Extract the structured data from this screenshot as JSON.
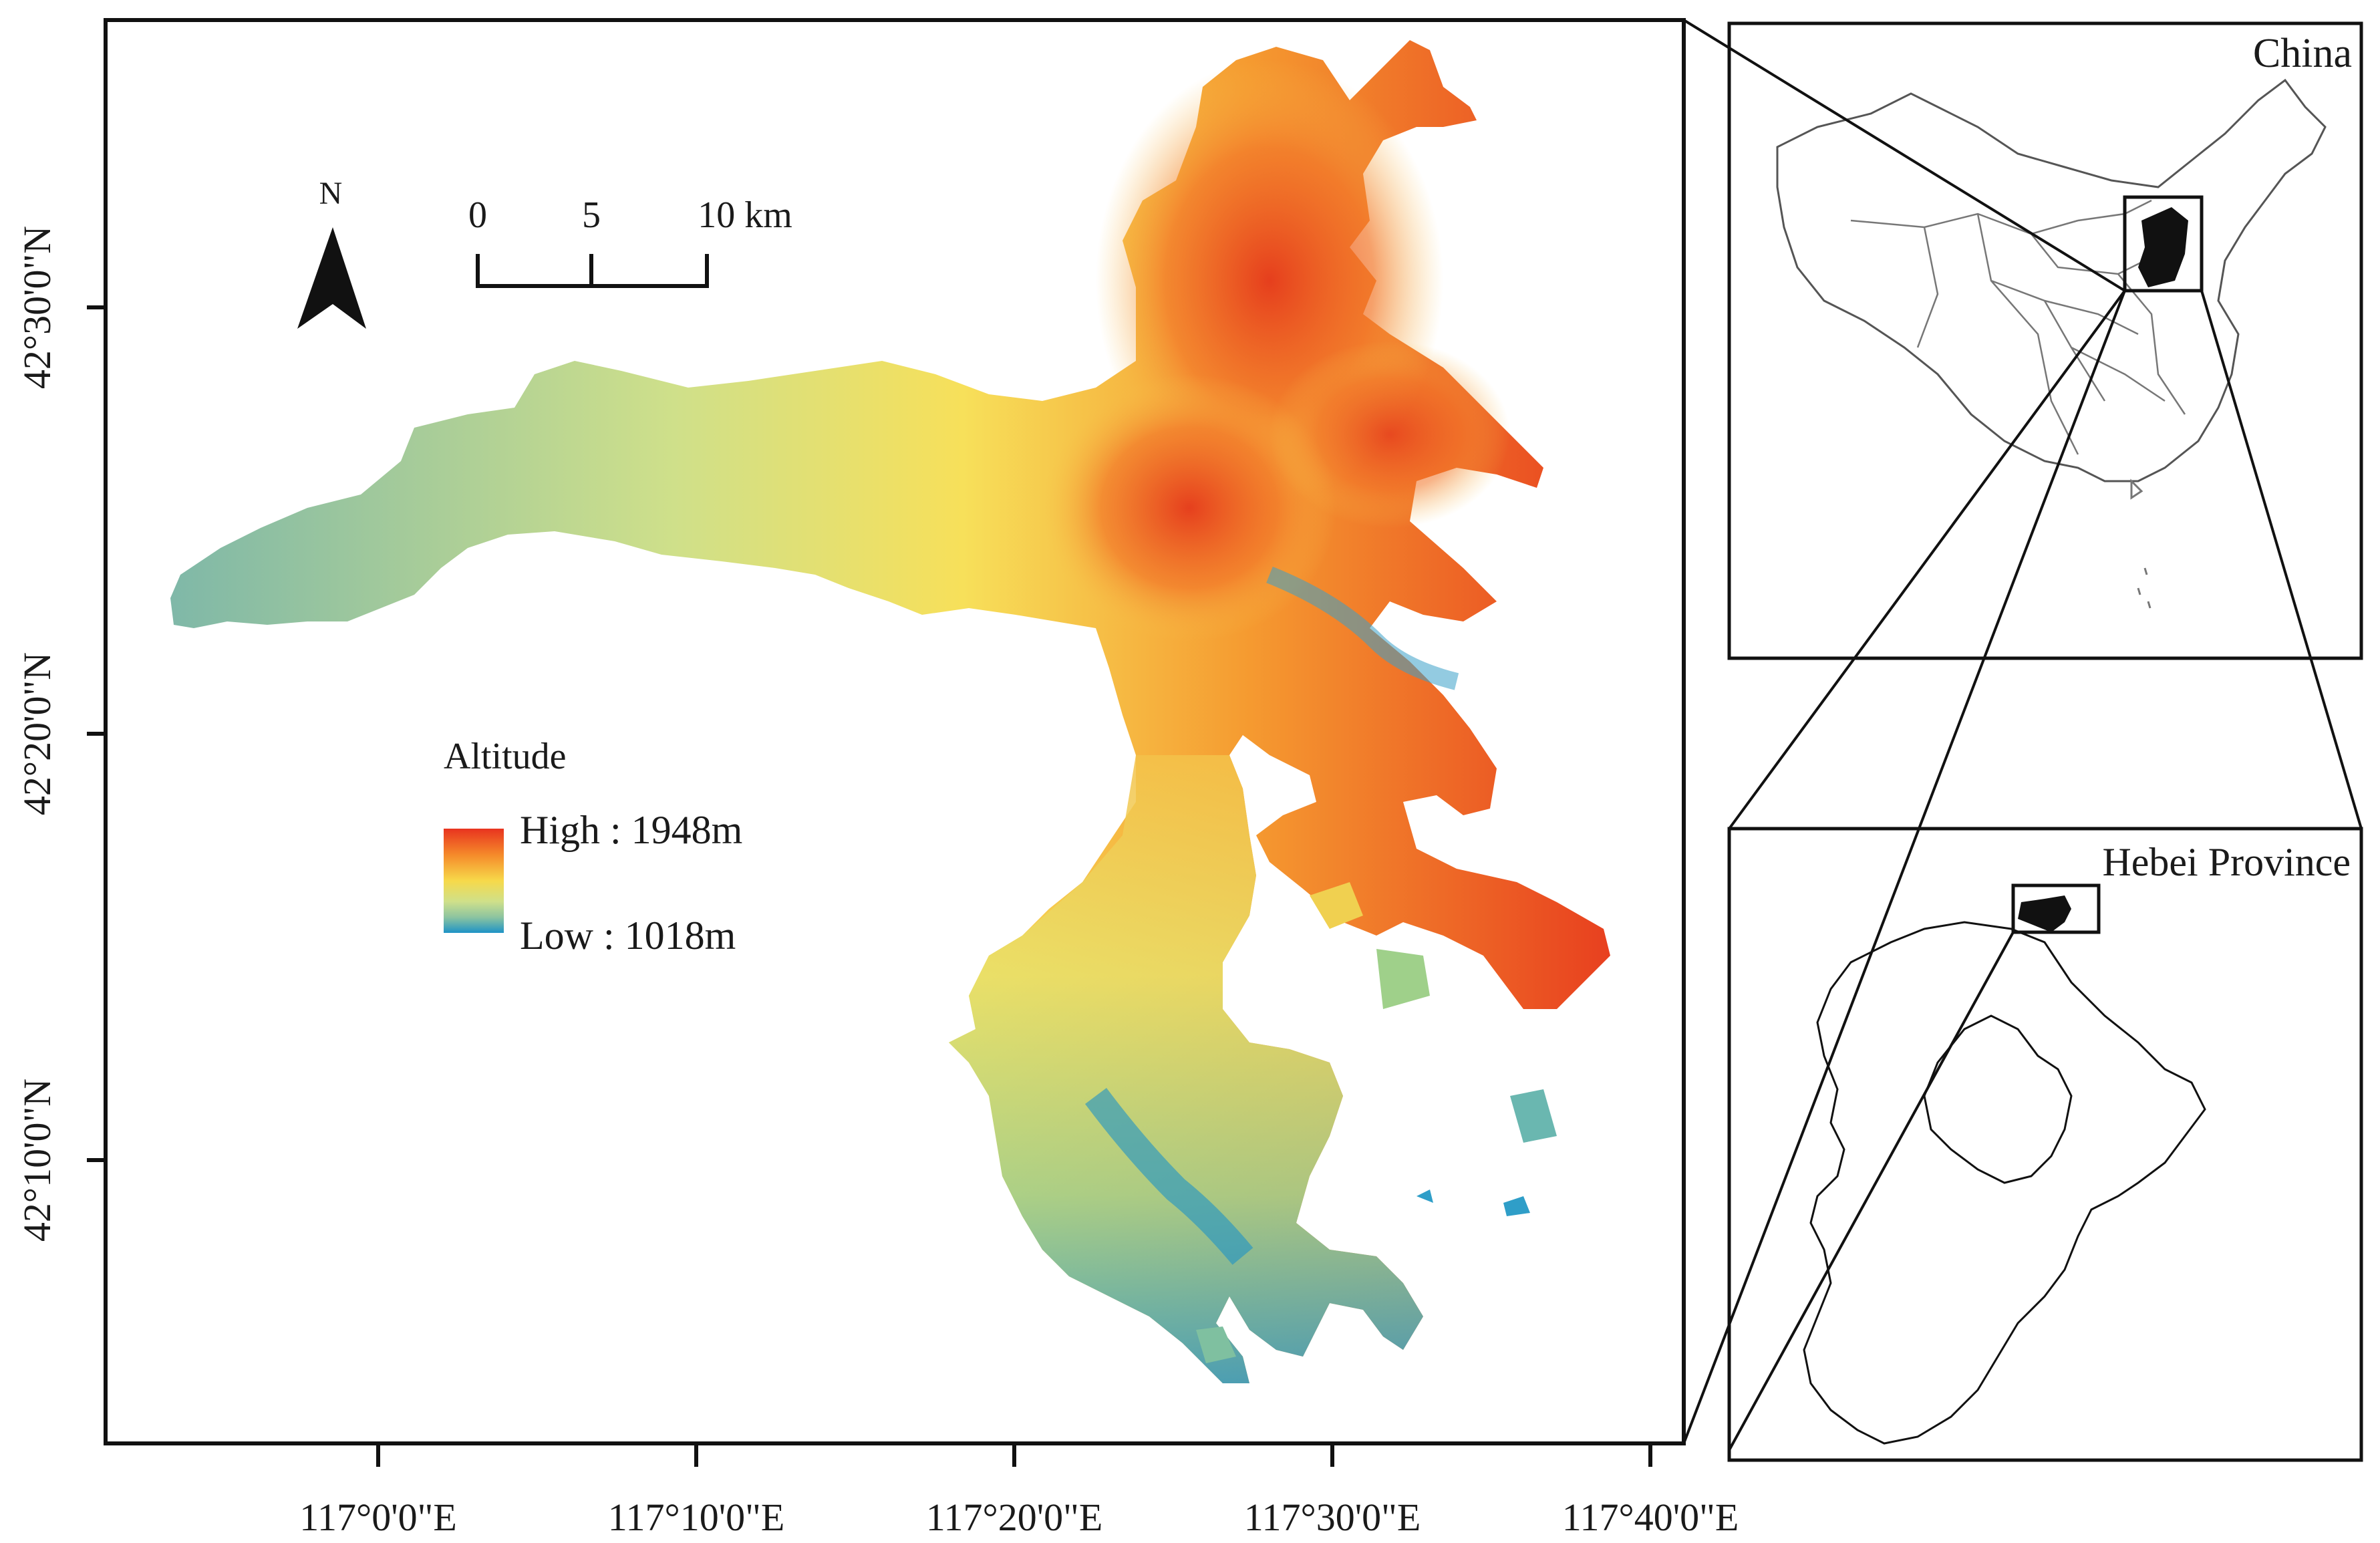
{
  "main_map": {
    "north_arrow_label": "N",
    "scale_bar": {
      "labels": [
        "0",
        "5",
        "10 km"
      ]
    },
    "legend": {
      "title": "Altitude",
      "high_label": "High : 1948m",
      "low_label": "Low : 1018m",
      "high_value_m": 1948,
      "low_value_m": 1018,
      "colors": [
        "#e8331f",
        "#f58a2a",
        "#f7d94a",
        "#cfe08a",
        "#8cc4a0",
        "#1e93c6"
      ]
    },
    "lat_ticks": [
      "42°30'0\"N",
      "42°20'0\"N",
      "42°10'0\"N"
    ],
    "lon_ticks": [
      "117°0'0\"E",
      "117°10'0\"E",
      "117°20'0\"E",
      "117°30'0\"E",
      "117°40'0\"E"
    ]
  },
  "inset_china": {
    "title": "China"
  },
  "inset_hebei": {
    "title": "Hebei Province"
  }
}
